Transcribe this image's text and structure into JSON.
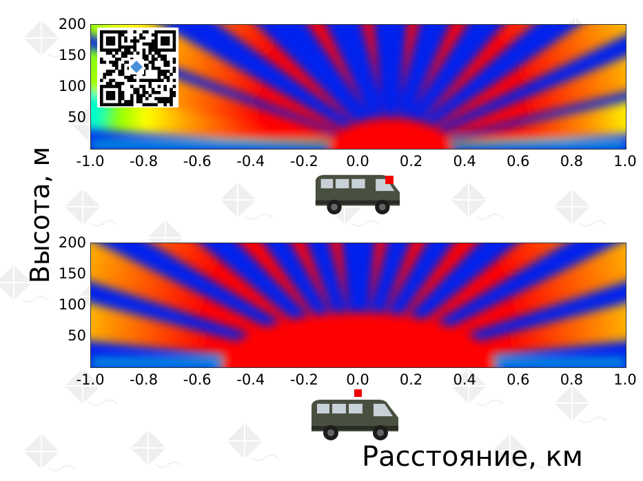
{
  "colors": {
    "colormap": [
      "#0022ee",
      "#00ccff",
      "#00ffcc",
      "#88ff00",
      "#ffff00",
      "#ff9900",
      "#ff0000"
    ],
    "marker": "#ee0000",
    "van_body": "#4a5040"
  },
  "icons": {
    "watermark": "kite-watermark-icon",
    "qr": "qr-code-icon",
    "vehicle": "van-icon"
  },
  "ylabel": "Высота, м",
  "xlabel": "Расстояние, км",
  "chart_data": [
    {
      "type": "heatmap",
      "title": "",
      "x_ticks": [
        "-1.0",
        "-0.8",
        "-0.6",
        "-0.4",
        "-0.2",
        "0.0",
        "0.2",
        "0.4",
        "0.6",
        "0.8",
        "1.0"
      ],
      "y_ticks": [
        "50",
        "100",
        "150",
        "200"
      ],
      "xlim": [
        -1.0,
        1.0
      ],
      "ylim": [
        0,
        200
      ],
      "source_x_km": 0.12,
      "lobes": [
        {
          "angle_deg": 172,
          "intensity": 0.6
        },
        {
          "angle_deg": 165,
          "intensity": 0.7
        },
        {
          "angle_deg": 155,
          "intensity": 0.75
        },
        {
          "angle_deg": 140,
          "intensity": 0.85
        },
        {
          "angle_deg": 120,
          "intensity": 0.9
        },
        {
          "angle_deg": 100,
          "intensity": 0.85
        },
        {
          "angle_deg": 80,
          "intensity": 0.95
        },
        {
          "angle_deg": 62,
          "intensity": 0.9
        },
        {
          "angle_deg": 45,
          "intensity": 0.85
        },
        {
          "angle_deg": 30,
          "intensity": 0.8
        },
        {
          "angle_deg": 18,
          "intensity": 0.75
        },
        {
          "angle_deg": 8,
          "intensity": 0.6
        }
      ]
    },
    {
      "type": "heatmap",
      "title": "",
      "x_ticks": [
        "-1.0",
        "-0.8",
        "-0.6",
        "-0.4",
        "-0.2",
        "0.0",
        "0.2",
        "0.4",
        "0.6",
        "0.8",
        "1.0"
      ],
      "y_ticks": [
        "50",
        "100",
        "150",
        "200"
      ],
      "xlim": [
        -1.0,
        1.0
      ],
      "ylim": [
        0,
        200
      ],
      "source_x_km": 0.0,
      "lobes": [
        {
          "angle_deg": 170,
          "intensity": 0.85
        },
        {
          "angle_deg": 158,
          "intensity": 0.95
        },
        {
          "angle_deg": 145,
          "intensity": 1.0
        },
        {
          "angle_deg": 130,
          "intensity": 1.0
        },
        {
          "angle_deg": 115,
          "intensity": 1.0
        },
        {
          "angle_deg": 100,
          "intensity": 0.95
        },
        {
          "angle_deg": 80,
          "intensity": 0.95
        },
        {
          "angle_deg": 65,
          "intensity": 1.0
        },
        {
          "angle_deg": 50,
          "intensity": 1.0
        },
        {
          "angle_deg": 35,
          "intensity": 1.0
        },
        {
          "angle_deg": 22,
          "intensity": 0.95
        },
        {
          "angle_deg": 10,
          "intensity": 0.85
        }
      ]
    }
  ]
}
